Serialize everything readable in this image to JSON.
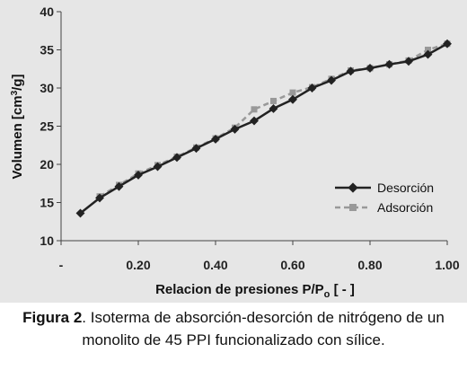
{
  "chart_data": {
    "type": "line",
    "xlabel_main": "Relacion de presiones P/P",
    "xlabel_sub": "o",
    "xlabel_suffix": " [ - ]",
    "ylabel_main": "Volumen [cm",
    "ylabel_sup": "3",
    "ylabel_suffix": "/g]",
    "xlim": [
      0,
      1.0
    ],
    "ylim": [
      10,
      40
    ],
    "x_ticks": [
      "-",
      "0.20",
      "0.40",
      "0.60",
      "0.80",
      "1.00"
    ],
    "y_ticks": [
      "10",
      "15",
      "20",
      "25",
      "30",
      "35",
      "40"
    ],
    "grid": false,
    "legend_position": "right",
    "series": [
      {
        "name": "Desorción",
        "color": "#222222",
        "marker": "diamond",
        "dash": "solid",
        "x": [
          0.05,
          0.1,
          0.15,
          0.2,
          0.25,
          0.3,
          0.35,
          0.4,
          0.45,
          0.5,
          0.55,
          0.6,
          0.65,
          0.7,
          0.75,
          0.8,
          0.85,
          0.9,
          0.95,
          1.0
        ],
        "y": [
          13.6,
          15.6,
          17.1,
          18.6,
          19.7,
          20.9,
          22.1,
          23.3,
          24.6,
          25.7,
          27.3,
          28.5,
          30.0,
          31.0,
          32.2,
          32.6,
          33.1,
          33.5,
          34.4,
          35.8
        ]
      },
      {
        "name": "Adsorción",
        "color": "#999999",
        "marker": "square",
        "dash": "dashed",
        "x": [
          0.1,
          0.15,
          0.2,
          0.25,
          0.3,
          0.35,
          0.4,
          0.45,
          0.5,
          0.55,
          0.6,
          0.65,
          0.7,
          0.75,
          0.8,
          0.85,
          0.9,
          0.95,
          1.0
        ],
        "y": [
          15.8,
          17.3,
          18.8,
          19.9,
          21.0,
          22.2,
          23.4,
          24.8,
          27.2,
          28.3,
          29.4,
          30.1,
          31.2,
          32.3,
          32.6,
          33.1,
          33.6,
          35.0,
          35.8
        ]
      }
    ]
  },
  "caption": {
    "label": "Figura 2",
    "text": ". Isoterma de absorción-desorción de nitrógeno de un monolito de 45 PPI funcionalizado con sílice."
  }
}
